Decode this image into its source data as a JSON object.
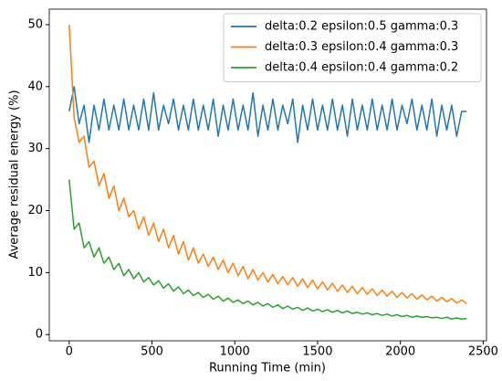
{
  "chart_data": {
    "type": "line",
    "xlabel": "Running Time (min)",
    "ylabel": "Average residual energy (%)",
    "x": [
      0,
      30,
      60,
      90,
      120,
      150,
      180,
      210,
      240,
      270,
      300,
      330,
      360,
      390,
      420,
      450,
      480,
      510,
      540,
      570,
      600,
      630,
      660,
      690,
      720,
      750,
      780,
      810,
      840,
      870,
      900,
      930,
      960,
      990,
      1020,
      1050,
      1080,
      1110,
      1140,
      1170,
      1200,
      1230,
      1260,
      1290,
      1320,
      1350,
      1380,
      1410,
      1440,
      1470,
      1500,
      1530,
      1560,
      1590,
      1620,
      1650,
      1680,
      1710,
      1740,
      1770,
      1800,
      1830,
      1860,
      1890,
      1920,
      1950,
      1980,
      2010,
      2040,
      2070,
      2100,
      2130,
      2160,
      2190,
      2220,
      2250,
      2280,
      2310,
      2340,
      2370,
      2400
    ],
    "series": [
      {
        "name": "delta:0.2 epsilon:0.5 gamma:0.3",
        "color": "#1f77b4",
        "values": [
          36,
          40,
          34,
          37,
          31,
          37,
          33,
          38,
          33,
          37,
          33,
          38,
          33,
          37,
          33,
          38,
          33,
          39,
          33,
          37,
          34,
          38,
          33,
          37,
          33,
          38,
          33,
          37,
          33,
          38,
          32,
          37,
          33,
          38,
          33,
          37,
          33,
          39,
          32,
          37,
          33,
          38,
          33,
          37,
          34,
          38,
          31,
          37,
          33,
          38,
          33,
          37,
          33,
          38,
          33,
          37,
          32,
          38,
          33,
          37,
          33,
          38,
          33,
          37,
          33,
          38,
          33,
          37,
          34,
          38,
          33,
          37,
          33,
          38,
          32,
          37,
          33,
          37,
          32,
          36,
          36
        ]
      },
      {
        "name": "delta:0.3 epsilon:0.4 gamma:0.3",
        "color": "#ff7f0e",
        "values": [
          50,
          35,
          31,
          32,
          27,
          28,
          24,
          26,
          22,
          24,
          20,
          22,
          19,
          20,
          17,
          19,
          16,
          18,
          15,
          17,
          14,
          16,
          13,
          15,
          12,
          14,
          11.5,
          13,
          11,
          12.5,
          10.5,
          12,
          10,
          11.5,
          9.5,
          11,
          9,
          10.5,
          8.8,
          10,
          8.5,
          9.7,
          8.2,
          9.4,
          8,
          9.2,
          7.8,
          9,
          7.6,
          8.8,
          7.4,
          8.5,
          7.2,
          8.3,
          7,
          8,
          6.8,
          7.8,
          6.6,
          7.6,
          6.5,
          7.4,
          6.3,
          7.2,
          6.2,
          7,
          6,
          6.8,
          5.9,
          6.6,
          5.7,
          6.4,
          5.6,
          6.2,
          5.4,
          6,
          5.3,
          5.8,
          5.1,
          5.6,
          5
        ]
      },
      {
        "name": "delta:0.4 epsilon:0.4 gamma:0.2",
        "color": "#2ca02c",
        "values": [
          25,
          17,
          18,
          14,
          15,
          12.5,
          14,
          11.5,
          12.5,
          10.5,
          11.5,
          9.5,
          10.5,
          9,
          10,
          8.5,
          9.2,
          8,
          8.7,
          7.5,
          8.2,
          7,
          7.7,
          6.6,
          7.2,
          6.3,
          6.8,
          6,
          6.5,
          5.7,
          6.2,
          5.4,
          5.9,
          5.2,
          5.6,
          5,
          5.4,
          4.8,
          5.2,
          4.6,
          5,
          4.4,
          4.8,
          4.2,
          4.6,
          4.1,
          4.4,
          3.9,
          4.3,
          3.8,
          4.1,
          3.7,
          4,
          3.6,
          3.9,
          3.5,
          3.8,
          3.4,
          3.6,
          3.3,
          3.5,
          3.2,
          3.4,
          3.1,
          3.3,
          3,
          3.2,
          2.9,
          3.1,
          2.8,
          3,
          2.8,
          2.9,
          2.7,
          2.8,
          2.6,
          2.8,
          2.5,
          2.7,
          2.5,
          2.6
        ]
      }
    ],
    "xlim": [
      -120,
      2520
    ],
    "ylim": [
      -1,
      52.5
    ],
    "xticks": [
      0,
      500,
      1000,
      1500,
      2000,
      2500
    ],
    "yticks": [
      0,
      10,
      20,
      30,
      40,
      50
    ],
    "grid": false,
    "legend": "upper right"
  }
}
